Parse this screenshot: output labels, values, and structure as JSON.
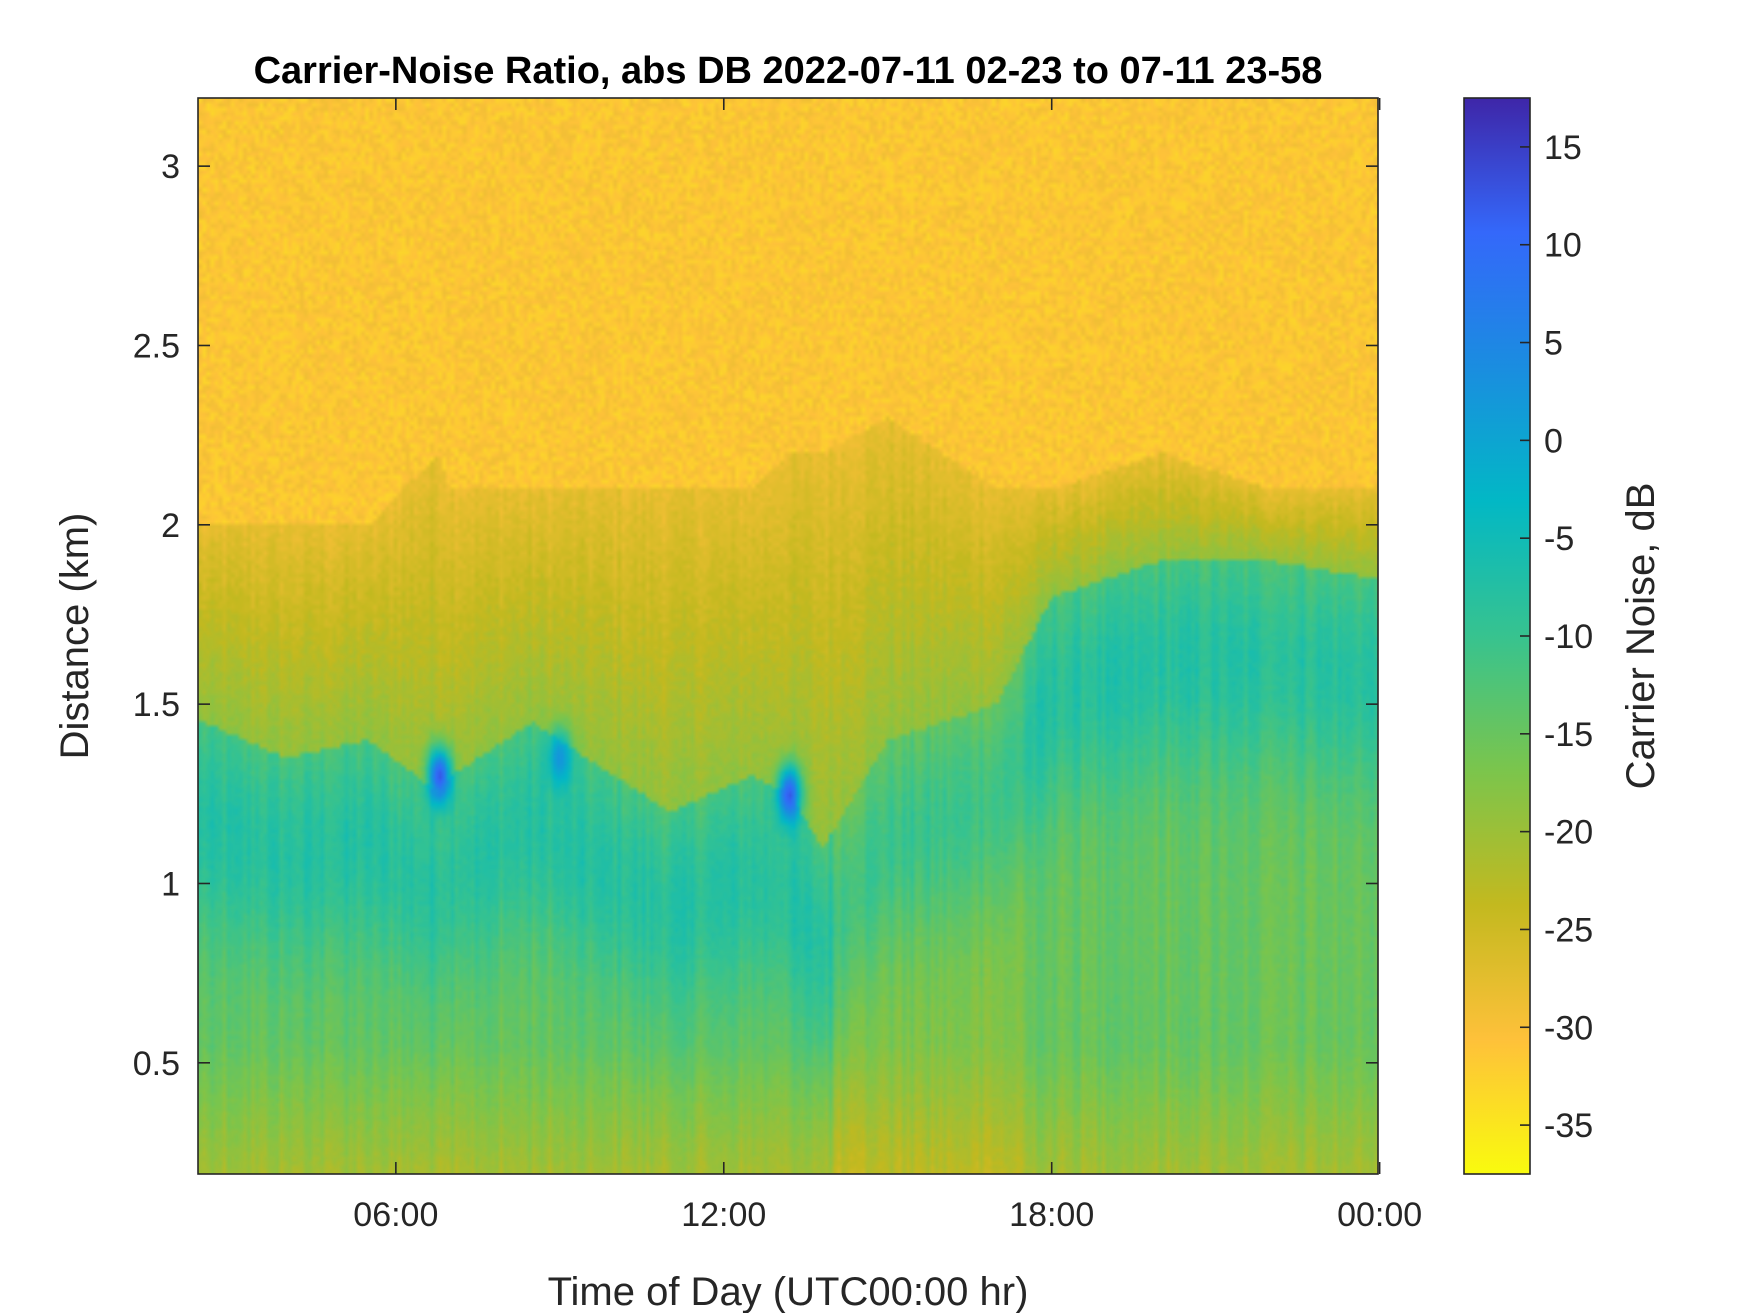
{
  "chart_data": {
    "type": "heatmap",
    "title": "Carrier-Noise Ratio, abs DB 2022-07-11 02-23 to 07-11 23-58",
    "xlabel": "Time of Day (UTC00:00 hr)",
    "ylabel": "Distance (km)",
    "colorbar_label": "Carrier Noise, dB",
    "x_ticks": [
      {
        "value": 6,
        "label": "06:00"
      },
      {
        "value": 12,
        "label": "12:00"
      },
      {
        "value": 18,
        "label": "18:00"
      },
      {
        "value": 24,
        "label": "00:00"
      }
    ],
    "y_ticks": [
      {
        "value": 0.5,
        "label": "0.5"
      },
      {
        "value": 1,
        "label": "1"
      },
      {
        "value": 1.5,
        "label": "1.5"
      },
      {
        "value": 2,
        "label": "2"
      },
      {
        "value": 2.5,
        "label": "2.5"
      },
      {
        "value": 3,
        "label": "3"
      }
    ],
    "colorbar_ticks": [
      {
        "value": 15,
        "label": "15"
      },
      {
        "value": 10,
        "label": "10"
      },
      {
        "value": 5,
        "label": "5"
      },
      {
        "value": 0,
        "label": "0"
      },
      {
        "value": -5,
        "label": "-5"
      },
      {
        "value": -10,
        "label": "-10"
      },
      {
        "value": -15,
        "label": "-15"
      },
      {
        "value": -20,
        "label": "-20"
      },
      {
        "value": -25,
        "label": "-25"
      },
      {
        "value": -30,
        "label": "-30"
      },
      {
        "value": -35,
        "label": "-35"
      }
    ],
    "xlim": [
      2.38,
      23.97
    ],
    "ylim": [
      0.19,
      3.19
    ],
    "clim": [
      -37.5,
      17.5
    ],
    "colormap": "parula",
    "colormap_stops": [
      "#f9fb0e",
      "#fec13a",
      "#c3b91f",
      "#7bc54c",
      "#37c38f",
      "#02b8c5",
      "#1a8de0",
      "#3468fa",
      "#3e26a8"
    ],
    "grid": false,
    "time_axis": [
      2.5,
      4.0,
      5.5,
      6.8,
      7.0,
      8.5,
      9.5,
      11.0,
      12.5,
      13.2,
      13.8,
      15.0,
      17.0,
      18.0,
      20.0,
      22.0,
      23.9
    ],
    "cloud_base_km": [
      1.45,
      1.35,
      1.4,
      1.25,
      1.3,
      1.45,
      1.35,
      1.2,
      1.3,
      1.25,
      1.1,
      1.4,
      1.5,
      1.8,
      1.9,
      1.9,
      1.85
    ],
    "signal_top_km": [
      2.0,
      2.0,
      2.0,
      2.2,
      2.1,
      2.1,
      2.1,
      2.1,
      2.1,
      2.2,
      2.2,
      2.3,
      2.1,
      2.1,
      2.2,
      2.1,
      2.1
    ],
    "strong_returns": [
      {
        "time": 6.8,
        "distance_km": 1.3,
        "value_db": 16
      },
      {
        "time": 9.0,
        "distance_km": 1.35,
        "value_db": 4
      },
      {
        "time": 13.2,
        "distance_km": 1.25,
        "value_db": 15
      }
    ]
  }
}
